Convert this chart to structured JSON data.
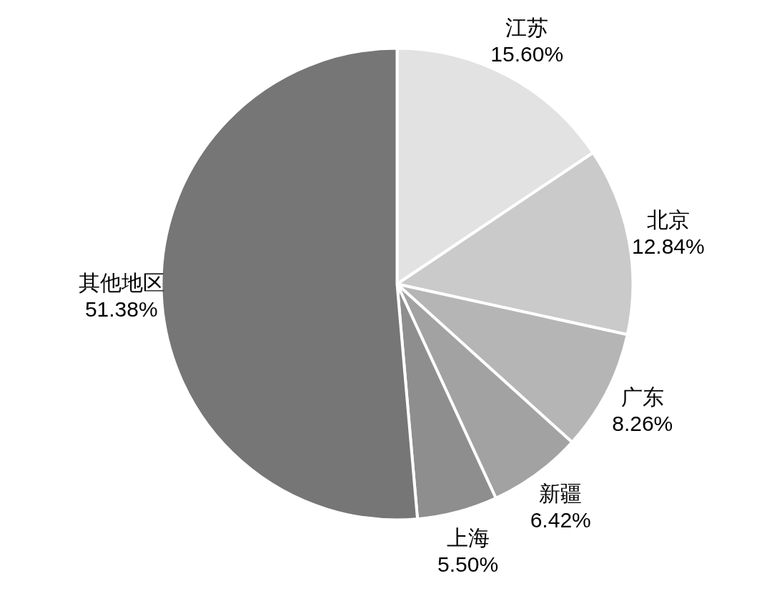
{
  "chart_data": {
    "type": "pie",
    "categories": [
      "江苏",
      "北京",
      "广东",
      "新疆",
      "上海",
      "其他地区"
    ],
    "values": [
      15.6,
      12.84,
      8.26,
      6.42,
      5.5,
      51.38
    ],
    "value_labels": [
      "15.60%",
      "12.84%",
      "8.26%",
      "6.42%",
      "5.50%",
      "51.38%"
    ],
    "colors": [
      "#e2e2e2",
      "#cacaca",
      "#b5b5b5",
      "#a2a2a2",
      "#8e8e8e",
      "#767676"
    ]
  }
}
